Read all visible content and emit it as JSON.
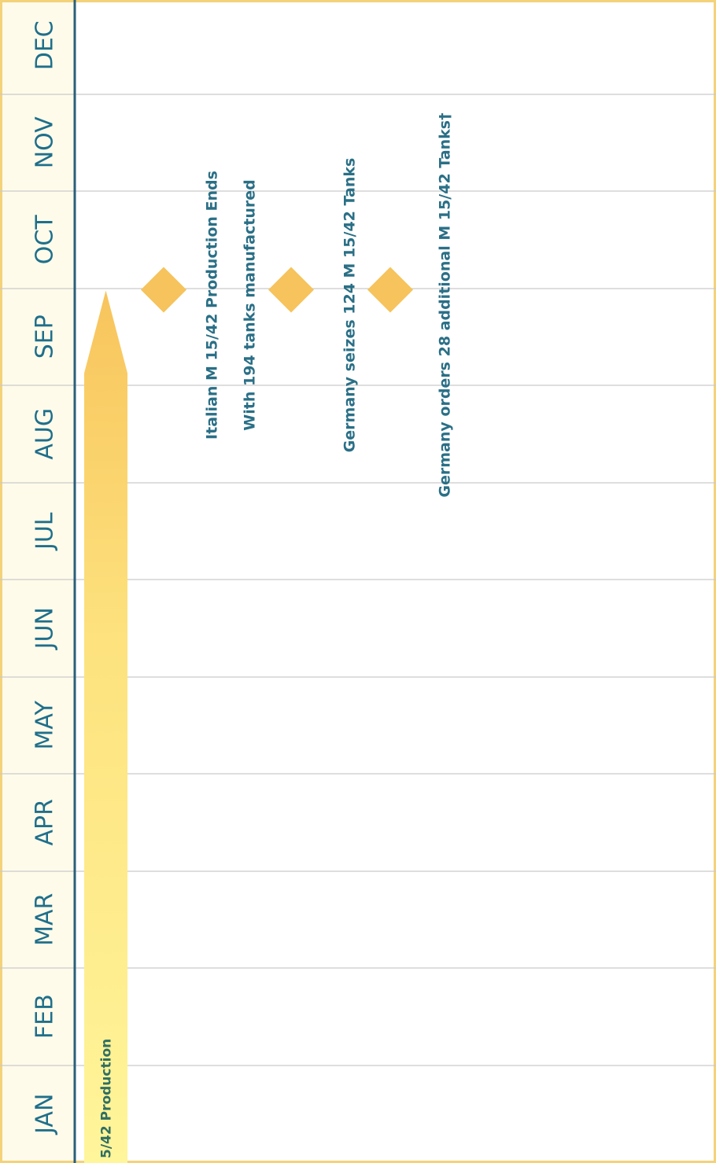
{
  "timeline": {
    "months": [
      "JAN",
      "FEB",
      "MAR",
      "APR",
      "MAY",
      "JUN",
      "JUL",
      "AUG",
      "SEP",
      "OCT",
      "NOV",
      "DEC"
    ],
    "production_bar": {
      "label": "5/42 Production",
      "end_month": "SEP"
    },
    "events": [
      {
        "month": "SEP",
        "lines": [
          "Italian M 15/42 Production Ends",
          "With 194 tanks manufactured"
        ]
      },
      {
        "month": "SEP",
        "lines": [
          "Germany seizes 124 M 15/42 Tanks"
        ]
      },
      {
        "month": "SEP",
        "lines": [
          "Germany orders 28 additional M 15/42 Tanks†"
        ]
      }
    ]
  },
  "colors": {
    "frame": "#f3d27a",
    "axis": "#2a5f78",
    "month_text": "#1f6f8b",
    "gridline": "#c9c9c9",
    "milestone": "#f6c35c",
    "bar_light": "#fff59a",
    "bar_dark": "#f8c45c",
    "event_text": "#2a6f86"
  }
}
